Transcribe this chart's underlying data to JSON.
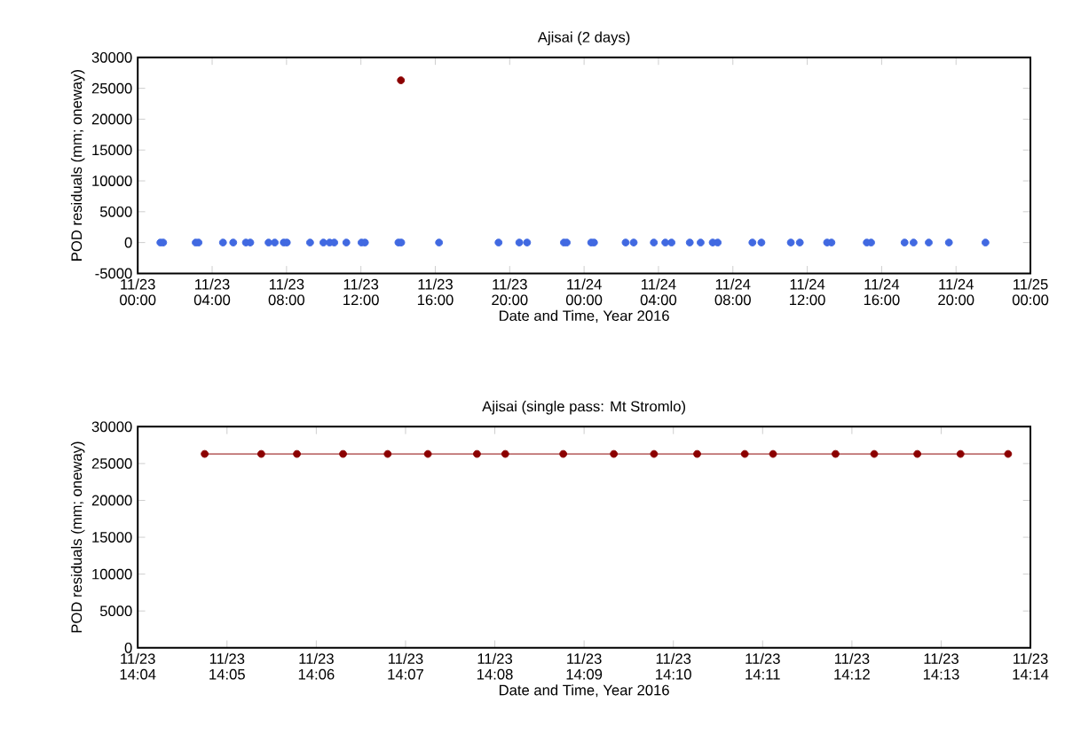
{
  "chart_data": [
    {
      "type": "scatter",
      "title": "Ajisai (2 days)",
      "xlabel": "Date and Time, Year 2016",
      "ylabel": "POD residuals (mm; oneway)",
      "xlim": [
        "2016-11-23T00:00",
        "2016-11-25T00:00"
      ],
      "ylim": [
        -5000,
        30000
      ],
      "xticks": [
        {
          "value": "2016-11-23T00:00",
          "label": "11/23 00:00"
        },
        {
          "value": "2016-11-23T04:00",
          "label": "11/23 04:00"
        },
        {
          "value": "2016-11-23T08:00",
          "label": "11/23 08:00"
        },
        {
          "value": "2016-11-23T12:00",
          "label": "11/23 12:00"
        },
        {
          "value": "2016-11-23T16:00",
          "label": "11/23 16:00"
        },
        {
          "value": "2016-11-23T20:00",
          "label": "11/23 20:00"
        },
        {
          "value": "2016-11-24T00:00",
          "label": "11/24 00:00"
        },
        {
          "value": "2016-11-24T04:00",
          "label": "11/24 04:00"
        },
        {
          "value": "2016-11-24T08:00",
          "label": "11/24 08:00"
        },
        {
          "value": "2016-11-24T12:00",
          "label": "11/24 12:00"
        },
        {
          "value": "2016-11-24T16:00",
          "label": "11/24 16:00"
        },
        {
          "value": "2016-11-24T20:00",
          "label": "11/24 20:00"
        },
        {
          "value": "2016-11-25T00:00",
          "label": "11/25 00:00"
        }
      ],
      "yticks": [
        -5000,
        0,
        5000,
        10000,
        15000,
        20000,
        25000,
        30000
      ],
      "marker": "circle",
      "series": [
        {
          "color": "#4169e1",
          "x": [
            "2016-11-23T01:13",
            "2016-11-23T01:22",
            "2016-11-23T03:07",
            "2016-11-23T03:16",
            "2016-11-23T04:35",
            "2016-11-23T05:08",
            "2016-11-23T05:49",
            "2016-11-23T06:03",
            "2016-11-23T07:02",
            "2016-11-23T07:22",
            "2016-11-23T07:51",
            "2016-11-23T08:01",
            "2016-11-23T09:16",
            "2016-11-23T09:59",
            "2016-11-23T10:19",
            "2016-11-23T10:34",
            "2016-11-23T11:13",
            "2016-11-23T12:02",
            "2016-11-23T12:13",
            "2016-11-23T14:01",
            "2016-11-23T14:10",
            "2016-11-23T16:12",
            "2016-11-23T19:24",
            "2016-11-23T20:31",
            "2016-11-23T20:56",
            "2016-11-23T22:55",
            "2016-11-23T23:04",
            "2016-11-24T00:23",
            "2016-11-24T00:32",
            "2016-11-24T02:14",
            "2016-11-24T02:40",
            "2016-11-24T03:45",
            "2016-11-24T04:22",
            "2016-11-24T04:42",
            "2016-11-24T05:41",
            "2016-11-24T06:16",
            "2016-11-24T06:55",
            "2016-11-24T07:11",
            "2016-11-24T09:03",
            "2016-11-24T09:32",
            "2016-11-24T11:07",
            "2016-11-24T11:36",
            "2016-11-24T13:04",
            "2016-11-24T13:18",
            "2016-11-24T15:12",
            "2016-11-24T15:26",
            "2016-11-24T17:14",
            "2016-11-24T17:43",
            "2016-11-24T18:32",
            "2016-11-24T19:37",
            "2016-11-24T21:35"
          ],
          "values": [
            0,
            0,
            0,
            0,
            0,
            0,
            0,
            0,
            0,
            0,
            0,
            0,
            0,
            0,
            0,
            0,
            0,
            0,
            0,
            0,
            0,
            0,
            0,
            0,
            0,
            0,
            0,
            0,
            0,
            0,
            0,
            0,
            0,
            0,
            0,
            0,
            0,
            0,
            0,
            0,
            0,
            0,
            0,
            0,
            0,
            0,
            0,
            0,
            0,
            0,
            0
          ]
        },
        {
          "color": "#8b0000",
          "x": [
            "2016-11-23T14:09"
          ],
          "values": [
            26300
          ]
        }
      ]
    },
    {
      "type": "line",
      "title": "Ajisai (single pass: Mt Stromlo)",
      "xlabel": "Date and Time, Year 2016",
      "ylabel": "POD residuals (mm; oneway)",
      "xlim": [
        "2016-11-23T14:04",
        "2016-11-23T14:14"
      ],
      "ylim": [
        0,
        30000
      ],
      "xticks": [
        {
          "value": "2016-11-23T14:04",
          "label": "11/23 14:04"
        },
        {
          "value": "2016-11-23T14:05",
          "label": "11/23 14:05"
        },
        {
          "value": "2016-11-23T14:06",
          "label": "11/23 14:06"
        },
        {
          "value": "2016-11-23T14:07",
          "label": "11/23 14:07"
        },
        {
          "value": "2016-11-23T14:08",
          "label": "11/23 14:08"
        },
        {
          "value": "2016-11-23T14:09",
          "label": "11/23 14:09"
        },
        {
          "value": "2016-11-23T14:10",
          "label": "11/23 14:10"
        },
        {
          "value": "2016-11-23T14:11",
          "label": "11/23 14:11"
        },
        {
          "value": "2016-11-23T14:12",
          "label": "11/23 14:12"
        },
        {
          "value": "2016-11-23T14:13",
          "label": "11/23 14:13"
        },
        {
          "value": "2016-11-23T14:14",
          "label": "11/23 14:14"
        }
      ],
      "yticks": [
        0,
        5000,
        10000,
        15000,
        20000,
        25000,
        30000
      ],
      "marker": "circle",
      "line_style": "solid",
      "series": [
        {
          "color": "#8b0000",
          "x": [
            "2016-11-23T14:04:45",
            "2016-11-23T14:05:23",
            "2016-11-23T14:05:47",
            "2016-11-23T14:06:18",
            "2016-11-23T14:06:48",
            "2016-11-23T14:07:15",
            "2016-11-23T14:07:48",
            "2016-11-23T14:08:07",
            "2016-11-23T14:08:46",
            "2016-11-23T14:09:20",
            "2016-11-23T14:09:47",
            "2016-11-23T14:10:16",
            "2016-11-23T14:10:48",
            "2016-11-23T14:11:07",
            "2016-11-23T14:11:49",
            "2016-11-23T14:12:15",
            "2016-11-23T14:12:44",
            "2016-11-23T14:13:13",
            "2016-11-23T14:13:45"
          ],
          "values": [
            26300,
            26300,
            26300,
            26300,
            26300,
            26300,
            26300,
            26300,
            26300,
            26300,
            26300,
            26300,
            26300,
            26300,
            26300,
            26300,
            26300,
            26300,
            26300
          ]
        }
      ]
    }
  ]
}
